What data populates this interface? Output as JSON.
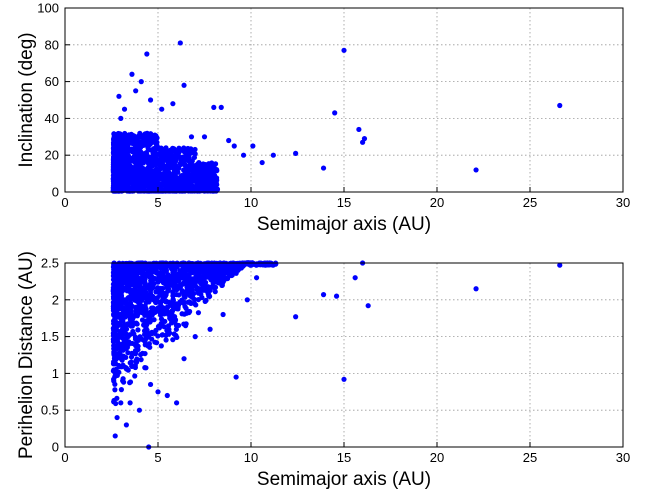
{
  "chart_data": [
    {
      "type": "scatter",
      "title": "",
      "xlabel": "Semimajor axis (AU)",
      "ylabel": "Inclination (deg)",
      "xlim": [
        0,
        30
      ],
      "ylim": [
        0,
        100
      ],
      "xticks": [
        "0",
        "5",
        "10",
        "15",
        "20",
        "25",
        "30"
      ],
      "yticks": [
        "0",
        "20",
        "40",
        "60",
        "80",
        "100"
      ],
      "grid": true,
      "marker_color": "#0000ff",
      "x": [
        2.9,
        3.2,
        3.6,
        4.1,
        4.4,
        4.6,
        3.8,
        3.0,
        5.2,
        5.8,
        6.2,
        6.4,
        6.8,
        7.5,
        8.0,
        8.4,
        8.8,
        9.1,
        9.6,
        10.1,
        10.6,
        11.2,
        12.4,
        13.9,
        14.5,
        15.0,
        15.8,
        16.1,
        16.0,
        22.1,
        26.6
      ],
      "y": [
        52,
        45,
        64,
        60,
        75,
        50,
        55,
        40,
        45,
        48,
        81,
        58,
        30,
        30,
        46,
        46,
        28,
        25,
        20,
        25,
        16,
        20,
        21,
        13,
        43,
        77,
        34,
        29,
        27,
        12,
        47
      ],
      "notes_dense_cluster": {
        "x_range": [
          2.5,
          9.0
        ],
        "y_range": [
          0,
          40
        ]
      }
    },
    {
      "type": "scatter",
      "title": "",
      "xlabel": "Semimajor axis (AU)",
      "ylabel": "Perihelion Distance (AU)",
      "xlim": [
        0,
        30
      ],
      "ylim": [
        0,
        2.5
      ],
      "xticks": [
        "0",
        "5",
        "10",
        "15",
        "20",
        "25",
        "30"
      ],
      "yticks": [
        "0",
        "0.5",
        "1",
        "1.5",
        "2",
        "2.5"
      ],
      "grid": true,
      "marker_color": "#0000ff",
      "x": [
        2.7,
        2.8,
        3.0,
        3.1,
        3.3,
        3.5,
        4.0,
        4.5,
        4.6,
        5.0,
        5.5,
        6.0,
        6.4,
        7.0,
        7.8,
        8.5,
        9.2,
        9.8,
        10.3,
        11.0,
        12.4,
        13.9,
        14.6,
        15.0,
        15.6,
        16.0,
        16.3,
        22.1,
        26.6
      ],
      "y": [
        0.15,
        0.4,
        0.6,
        0.9,
        0.3,
        0.6,
        0.5,
        0.0,
        0.85,
        0.75,
        0.7,
        0.6,
        1.2,
        1.5,
        1.6,
        1.8,
        0.95,
        2.0,
        2.3,
        2.5,
        1.77,
        2.07,
        2.05,
        0.92,
        2.3,
        2.5,
        1.92,
        2.15,
        2.47
      ],
      "notes_dense_cluster": {
        "x_range": [
          2.5,
          10.0
        ],
        "y_range": [
          0.5,
          2.5
        ]
      }
    }
  ]
}
